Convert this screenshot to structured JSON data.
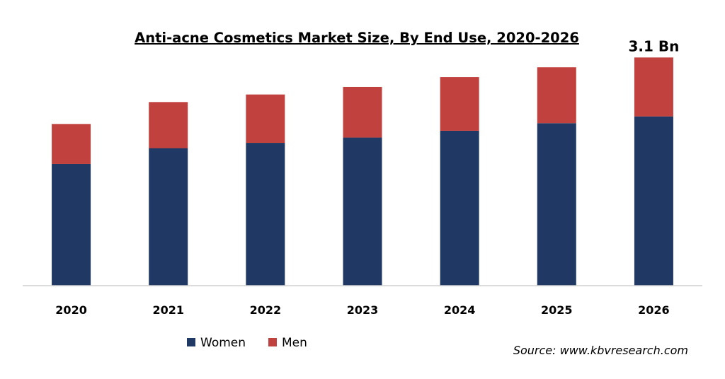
{
  "chart_data": {
    "type": "bar",
    "stacked": true,
    "title": "Anti-acne Cosmetics Market Size, By End Use, 2020-2026",
    "categories": [
      "2020",
      "2021",
      "2022",
      "2023",
      "2024",
      "2025",
      "2026"
    ],
    "series": [
      {
        "name": "Women",
        "color": "#1f3864",
        "values": [
          1.61,
          1.82,
          1.89,
          1.96,
          2.05,
          2.15,
          2.24
        ]
      },
      {
        "name": "Men",
        "color": "#c0413e",
        "values": [
          0.53,
          0.61,
          0.64,
          0.67,
          0.71,
          0.74,
          0.78
        ]
      }
    ],
    "annotation": {
      "category": "2026",
      "text": "3.1 Bn"
    },
    "ylim": [
      0,
      3.5
    ],
    "grid": false,
    "legend_position": "bottom-left",
    "source": "Source: www.kbvresearch.com"
  }
}
